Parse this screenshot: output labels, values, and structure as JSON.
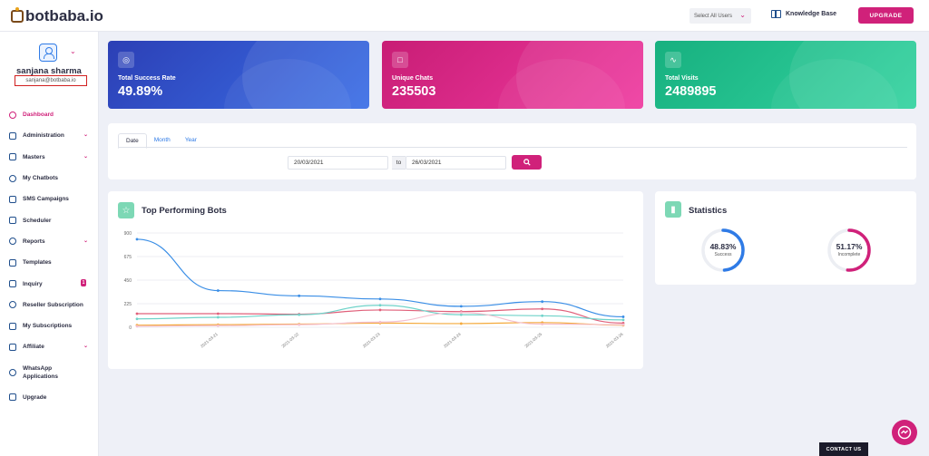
{
  "brand": {
    "name": "botbaba.io"
  },
  "topbar": {
    "select_users": "Select All Users",
    "knowledge_base": "Knowledge Base",
    "upgrade": "UPGRADE"
  },
  "user": {
    "name": "sanjana sharma",
    "email": "sanjana@botbaba.io"
  },
  "sidebar": {
    "items": [
      {
        "label": "Dashboard",
        "icon": "dashboard-icon",
        "active": true
      },
      {
        "label": "Administration",
        "icon": "gear-icon",
        "has_chevron": true
      },
      {
        "label": "Masters",
        "icon": "database-icon",
        "has_chevron": true
      },
      {
        "label": "My Chatbots",
        "icon": "chat-icon"
      },
      {
        "label": "SMS Campaigns",
        "icon": "phone-icon"
      },
      {
        "label": "Scheduler",
        "icon": "calendar-icon"
      },
      {
        "label": "Reports",
        "icon": "clock-icon",
        "has_chevron": true
      },
      {
        "label": "Templates",
        "icon": "template-icon"
      },
      {
        "label": "Inquiry",
        "icon": "question-icon",
        "badge": "1"
      },
      {
        "label": "Reseller Subscription",
        "icon": "refresh-icon"
      },
      {
        "label": "My Subscriptions",
        "icon": "card-icon"
      },
      {
        "label": "Affiliate",
        "icon": "share-icon",
        "has_chevron": true
      },
      {
        "label": "WhatsApp Applications",
        "icon": "whatsapp-icon"
      },
      {
        "label": "Upgrade",
        "icon": "upload-icon"
      }
    ]
  },
  "cards": [
    {
      "label": "Total Success Rate",
      "value": "49.89%",
      "color": "#2c3fb5"
    },
    {
      "label": "Unique Chats",
      "value": "235503",
      "color": "#d0217a"
    },
    {
      "label": "Total Visits",
      "value": "2489895",
      "color": "#1fb98a"
    }
  ],
  "filter": {
    "tabs": [
      "Date",
      "Month",
      "Year"
    ],
    "active_tab": "Date",
    "from_date": "20/03/2021",
    "to_label": "to",
    "to_date": "26/03/2021"
  },
  "top_bots": {
    "title": "Top Performing Bots"
  },
  "chart_data": {
    "type": "line",
    "x": [
      "2021-03-20",
      "2021-03-21",
      "2021-03-22",
      "2021-03-23",
      "2021-03-24",
      "2021-03-25",
      "2021-03-26"
    ],
    "x_tick_labels": [
      "2021-03-21",
      "2021-03-22",
      "2021-03-23",
      "2021-03-24",
      "2021-03-25",
      "2021-03-26"
    ],
    "ylim": [
      0,
      900
    ],
    "yticks": [
      0,
      225,
      450,
      675,
      900
    ],
    "grid": true,
    "series": [
      {
        "color": "#3a8ee6",
        "values": [
          840,
          350,
          300,
          270,
          200,
          245,
          100
        ]
      },
      {
        "color": "#e0607a",
        "values": [
          130,
          130,
          125,
          165,
          150,
          175,
          40
        ]
      },
      {
        "color": "#6fd3c9",
        "values": [
          80,
          95,
          120,
          210,
          120,
          110,
          70
        ]
      },
      {
        "color": "#f4a93b",
        "values": [
          20,
          25,
          30,
          40,
          35,
          45,
          20
        ]
      },
      {
        "color": "#f4c0d0",
        "values": [
          10,
          15,
          25,
          50,
          140,
          30,
          25
        ]
      }
    ]
  },
  "statistics": {
    "title": "Statistics",
    "success": {
      "value": "48.83%",
      "label": "Success",
      "fraction": 0.4883,
      "color": "#2f7be6"
    },
    "incomplete": {
      "value": "51.17%",
      "label": "Incomplete",
      "fraction": 0.5117,
      "color": "#d0217a"
    }
  },
  "contact": "CONTACT US"
}
